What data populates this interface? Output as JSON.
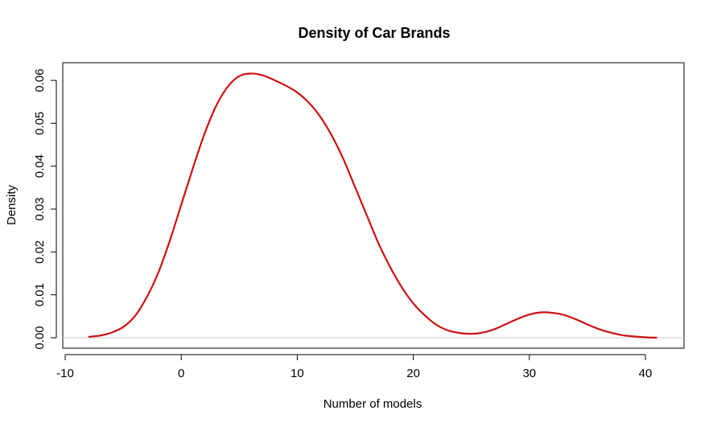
{
  "chart_data": {
    "type": "line",
    "title": "Density of Car Brands",
    "xlabel": "Number of models",
    "ylabel": "Density",
    "xlim": [
      -10,
      40
    ],
    "ylim": [
      0,
      0.06
    ],
    "x_ticks": [
      -10,
      0,
      10,
      20,
      30,
      40
    ],
    "x_tick_labels": [
      "-10",
      "0",
      "10",
      "20",
      "30",
      "40"
    ],
    "y_ticks": [
      0,
      0.01,
      0.02,
      0.03,
      0.04,
      0.05,
      0.06
    ],
    "y_tick_labels": [
      "0.00",
      "0.01",
      "0.02",
      "0.03",
      "0.04",
      "0.05",
      "0.06"
    ],
    "grid": false,
    "baseline_y": 0,
    "baseline_color": "#c8c8c8",
    "series": [
      {
        "color": "#cc1111",
        "x": [
          -8,
          -7,
          -6,
          -5,
          -4,
          -3,
          -2,
          -1,
          0,
          1,
          2,
          3,
          4,
          5,
          6,
          7,
          8,
          9,
          10,
          11,
          12,
          13,
          14,
          15,
          16,
          17,
          18,
          19,
          20,
          21,
          22,
          23,
          24,
          25,
          26,
          27,
          28,
          29,
          30,
          31,
          32,
          33,
          34,
          35,
          36,
          37,
          38,
          39,
          40,
          41
        ],
        "values": [
          0.0002,
          0.0005,
          0.0012,
          0.0025,
          0.005,
          0.0093,
          0.015,
          0.0225,
          0.031,
          0.0395,
          0.0475,
          0.054,
          0.0585,
          0.061,
          0.0616,
          0.0612,
          0.0601,
          0.0588,
          0.0572,
          0.0548,
          0.0515,
          0.047,
          0.0415,
          0.035,
          0.0285,
          0.022,
          0.0165,
          0.0118,
          0.008,
          0.0052,
          0.003,
          0.0017,
          0.0011,
          0.0009,
          0.0012,
          0.002,
          0.0032,
          0.0044,
          0.0054,
          0.0059,
          0.0058,
          0.0053,
          0.0043,
          0.0031,
          0.002,
          0.0012,
          0.0006,
          0.0003,
          0.0001,
          0.0
        ]
      }
    ]
  }
}
